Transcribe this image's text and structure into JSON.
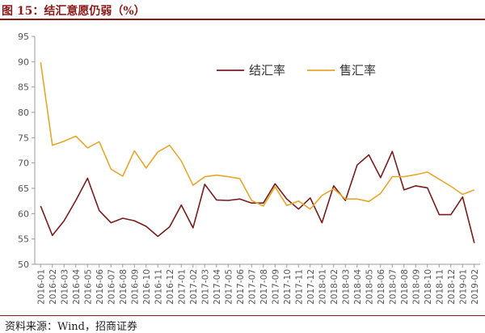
{
  "title": "图 15：结汇意愿仍弱（%）",
  "source": "资料来源：Wind，招商证券",
  "colors": {
    "title": "#8B1A1A",
    "series_sell": "#7B1C1C",
    "series_buy": "#E8A62A",
    "axis": "#9a9a9a"
  },
  "chart_data": {
    "type": "line",
    "title": "",
    "xlabel": "",
    "ylabel": "",
    "ylim": [
      50,
      95
    ],
    "yticks": [
      50,
      55,
      60,
      65,
      70,
      75,
      80,
      85,
      90,
      95
    ],
    "grid": false,
    "legend_position": "top-right",
    "x": [
      "2016-01",
      "2016-02",
      "2016-03",
      "2016-04",
      "2016-05",
      "2016-06",
      "2016-07",
      "2016-08",
      "2016-09",
      "2016-10",
      "2016-11",
      "2016-12",
      "2017-01",
      "2017-02",
      "2017-03",
      "2017-04",
      "2017-05",
      "2017-06",
      "2017-07",
      "2017-08",
      "2017-09",
      "2017-10",
      "2017-11",
      "2017-12",
      "2018-01",
      "2018-02",
      "2018-03",
      "2018-04",
      "2018-05",
      "2018-06",
      "2018-07",
      "2018-08",
      "2018-09",
      "2018-10",
      "2018-11",
      "2018-12",
      "2019-01",
      "2019-02"
    ],
    "series": [
      {
        "name": "结汇率",
        "color": "#7B1C1C",
        "values": [
          61.5,
          55.7,
          58.6,
          62.6,
          67.0,
          60.6,
          58.2,
          59.1,
          58.6,
          57.5,
          55.5,
          57.4,
          61.7,
          57.2,
          65.8,
          62.7,
          62.6,
          62.9,
          62.1,
          62.1,
          65.9,
          62.9,
          60.9,
          63.1,
          58.2,
          65.5,
          62.6,
          69.6,
          71.6,
          67.1,
          72.3,
          64.7,
          65.5,
          65.1,
          59.8,
          59.8,
          63.3,
          54.2
        ]
      },
      {
        "name": "售汇率",
        "color": "#E8A62A",
        "values": [
          89.9,
          73.5,
          74.3,
          75.3,
          73.0,
          74.2,
          68.8,
          67.4,
          72.4,
          69.0,
          72.2,
          73.5,
          70.4,
          65.6,
          67.3,
          67.6,
          67.3,
          66.9,
          62.6,
          61.5,
          65.3,
          61.6,
          62.5,
          60.9,
          63.6,
          64.9,
          62.9,
          62.9,
          62.4,
          64.0,
          67.3,
          67.3,
          67.7,
          68.2,
          66.8,
          65.4,
          63.8,
          64.7
        ]
      }
    ]
  }
}
